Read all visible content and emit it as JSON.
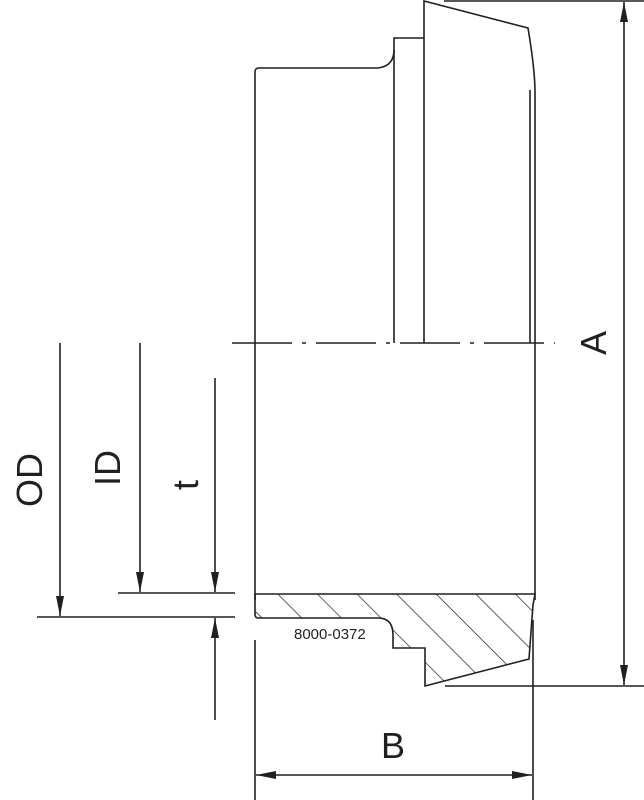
{
  "labels": {
    "a": "A",
    "b": "B",
    "od": "OD",
    "id": "ID",
    "t": "t",
    "part_number": "8000-0372"
  },
  "colors": {
    "line": "#231f20",
    "background": "#ffffff"
  }
}
